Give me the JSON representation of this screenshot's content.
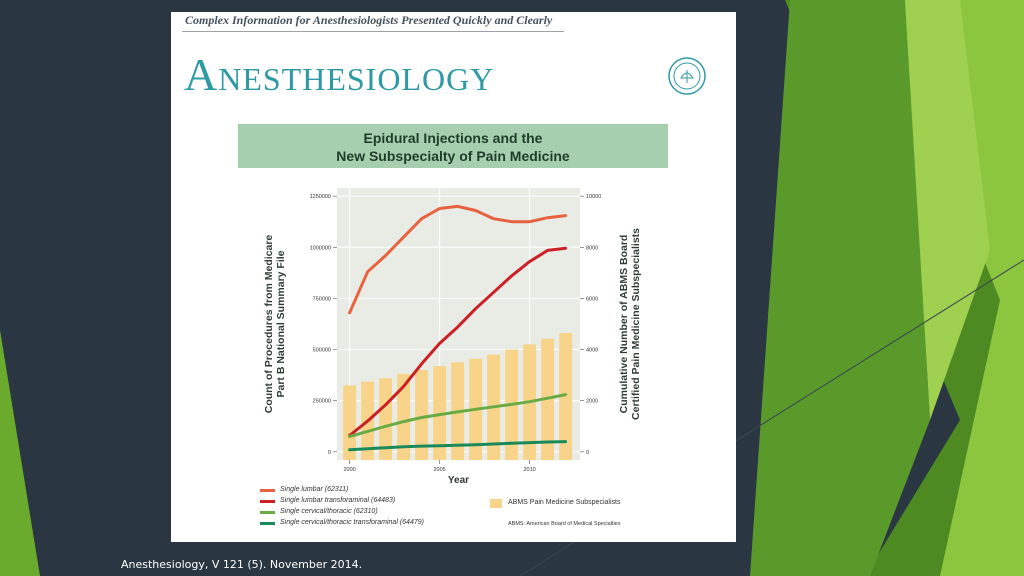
{
  "slide": {
    "caption": "Anesthesiology, V 121 (5). November 2014.",
    "background_color": "#2a3641",
    "accent_colors": [
      "#6aaa2c",
      "#8cc63f",
      "#4e8a22"
    ]
  },
  "journal": {
    "tagline": "Complex Information for Anesthesiologists Presented Quickly and Clearly",
    "title": "Anesthesiology",
    "seal_icon": "asa-seal-icon"
  },
  "figure": {
    "title_line1": "Epidural Injections and the",
    "title_line2": "New Subspecialty of Pain Medicine",
    "footnote": "ABMS: American Board of Medical Specialties"
  },
  "chart_data": {
    "type": "line",
    "title": "Epidural Injections and the New Subspecialty of Pain Medicine",
    "xlabel": "Year",
    "ylabel": "Count of Procedures from Medicare Part B National Summary File",
    "y2label": "Cumulative Number of ABMS Board Certified Pain Medicine Subspecialists",
    "xlim": [
      1999.3,
      2012.8
    ],
    "ylim": [
      -40000,
      1290000
    ],
    "y2lim": [
      -320,
      10320
    ],
    "x_ticks": [
      2000,
      2005,
      2010
    ],
    "y_ticks": [
      0,
      250000,
      500000,
      750000,
      1000000,
      1250000
    ],
    "y_tick_labels": [
      "0",
      "250000",
      "500000",
      "750000",
      "1000000",
      "1250000"
    ],
    "y2_ticks": [
      0,
      2000,
      4000,
      6000,
      8000,
      10000
    ],
    "y2_tick_labels": [
      "0",
      "2000",
      "4000",
      "6000",
      "8000",
      "10000"
    ],
    "grid": true,
    "x": [
      2000,
      2001,
      2002,
      2003,
      2004,
      2005,
      2006,
      2007,
      2008,
      2009,
      2010,
      2011,
      2012
    ],
    "series": [
      {
        "name": "Single lumbar (62311)",
        "axis": "left",
        "color": "#e8623f",
        "values": [
          680000,
          880000,
          960000,
          1050000,
          1140000,
          1190000,
          1200000,
          1180000,
          1140000,
          1125000,
          1125000,
          1145000,
          1155000
        ]
      },
      {
        "name": "Single lumbar transforaminal (64483)",
        "axis": "left",
        "color": "#cc1f26",
        "values": [
          80000,
          150000,
          230000,
          320000,
          430000,
          530000,
          610000,
          700000,
          780000,
          860000,
          930000,
          985000,
          995000
        ]
      },
      {
        "name": "Single cervical/thoracic (62310)",
        "axis": "left",
        "color": "#6aab45",
        "values": [
          75000,
          100000,
          125000,
          148000,
          168000,
          182000,
          195000,
          208000,
          220000,
          232000,
          245000,
          262000,
          280000
        ]
      },
      {
        "name": "Single cervical/thoracic transforaminal (64479)",
        "axis": "left",
        "color": "#1b8a5a",
        "values": [
          10000,
          15000,
          20000,
          25000,
          28000,
          30000,
          32000,
          35000,
          38000,
          42000,
          45000,
          48000,
          50000
        ]
      },
      {
        "name": "ABMS Pain Medicine Subspecialists",
        "type": "bar",
        "axis": "right",
        "color": "#f7d48a",
        "values": [
          2600,
          2750,
          2880,
          3050,
          3200,
          3350,
          3500,
          3640,
          3800,
          4000,
          4200,
          4420,
          4650
        ]
      }
    ]
  }
}
